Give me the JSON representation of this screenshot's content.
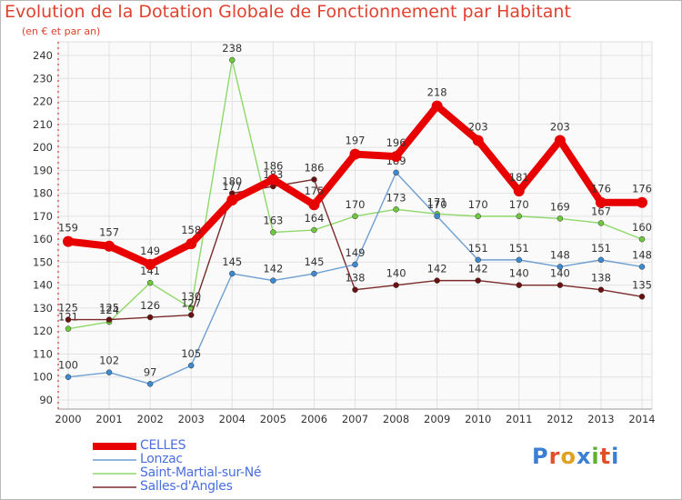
{
  "chart_data": {
    "type": "line",
    "title": "Evolution de la Dotation Globale de Fonctionnement par Habitant",
    "subtitle": "(en € et par an)",
    "xlabel": "",
    "ylabel": "",
    "categories": [
      "2000",
      "2001",
      "2002",
      "2003",
      "2004",
      "2005",
      "2006",
      "2007",
      "2008",
      "2009",
      "2010",
      "2011",
      "2012",
      "2013",
      "2014"
    ],
    "ylim": [
      90,
      240
    ],
    "yticks": [
      90,
      100,
      110,
      120,
      130,
      140,
      150,
      160,
      170,
      180,
      190,
      200,
      210,
      220,
      230,
      240
    ],
    "grid": true,
    "legend_position": "bottom-left",
    "series": [
      {
        "name": "CELLES",
        "color": "#e80000",
        "marker": "#e80000",
        "values": [
          159,
          157,
          149,
          158,
          177,
          186,
          175,
          197,
          196,
          218,
          203,
          181,
          203,
          176,
          176
        ]
      },
      {
        "name": "Lonzac",
        "color": "#6f9fd0",
        "marker": "#3c8ad0",
        "values": [
          100,
          102,
          97,
          105,
          145,
          142,
          145,
          149,
          189,
          170,
          151,
          151,
          148,
          151,
          148
        ]
      },
      {
        "name": "Saint-Martial-sur-Né",
        "color": "#8fd86a",
        "marker": "#6ec83e",
        "values": [
          121,
          124,
          141,
          130,
          238,
          163,
          164,
          170,
          173,
          171,
          170,
          170,
          169,
          167,
          160
        ]
      },
      {
        "name": "Salles-d'Angles",
        "color": "#7a2a2a",
        "marker": "#6a1010",
        "values": [
          125,
          125,
          126,
          127,
          180,
          183,
          186,
          138,
          140,
          142,
          142,
          140,
          140,
          138,
          135
        ]
      }
    ]
  },
  "brand": {
    "letters": [
      "P",
      "r",
      "o",
      "x",
      "i",
      "t",
      "i"
    ],
    "colors": [
      "#3a7fd5",
      "#e0502a",
      "#e0a020",
      "#3a7fd5",
      "#60b030",
      "#e0502a",
      "#3a7fd5"
    ]
  }
}
